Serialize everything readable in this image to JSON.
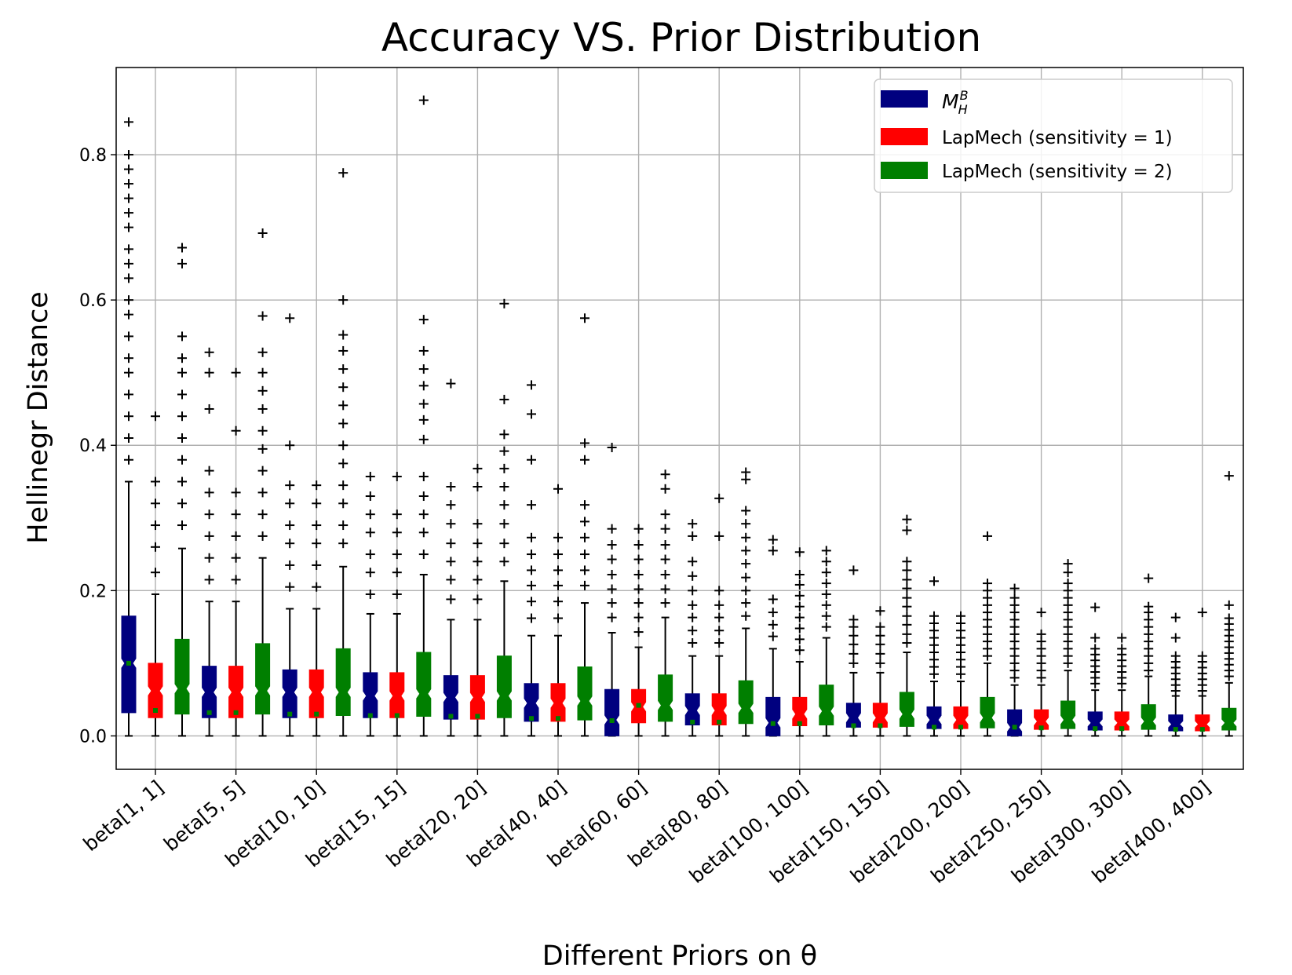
{
  "chart_data": {
    "type": "box",
    "title": "Accuracy VS. Prior Distribution",
    "xlabel": "Different Priors on θ",
    "ylabel": "Hellinegr Distance",
    "ylim": [
      -0.046,
      0.92
    ],
    "yticks": [
      0.0,
      0.2,
      0.4,
      0.6,
      0.8
    ],
    "grid": true,
    "legend_position": "top-right",
    "categories": [
      "beta[1, 1]",
      "beta[5, 5]",
      "beta[10, 10]",
      "beta[15, 15]",
      "beta[20, 20]",
      "beta[40, 40]",
      "beta[60, 60]",
      "beta[80, 80]",
      "beta[100, 100]",
      "beta[150, 150]",
      "beta[200, 200]",
      "beta[250, 250]",
      "beta[300, 300]",
      "beta[400, 400]"
    ],
    "series": [
      {
        "name": "M_H^B",
        "legend_main": "M",
        "legend_sub": "H",
        "legend_sup": "B",
        "color": "#00007f"
      },
      {
        "name": "LapMech (sensitivity = 1)",
        "color": "#ff0000"
      },
      {
        "name": "LapMech (sensitivity = 2)",
        "color": "#007f00"
      }
    ],
    "boxes": [
      {
        "category": "beta[1, 1]",
        "series": 0,
        "min": 0.0,
        "q1": 0.032,
        "median": 0.1,
        "q3": 0.165,
        "max": 0.35,
        "mean": 0.1,
        "outliers": [
          0.38,
          0.41,
          0.44,
          0.47,
          0.5,
          0.52,
          0.55,
          0.58,
          0.6,
          0.63,
          0.65,
          0.67,
          0.7,
          0.72,
          0.74,
          0.76,
          0.78,
          0.8,
          0.845
        ]
      },
      {
        "category": "beta[1, 1]",
        "series": 1,
        "min": 0.0,
        "q1": 0.025,
        "median": 0.062,
        "q3": 0.1,
        "max": 0.195,
        "mean": 0.035,
        "outliers": [
          0.225,
          0.26,
          0.29,
          0.32,
          0.35,
          0.44
        ]
      },
      {
        "category": "beta[1, 1]",
        "series": 2,
        "min": 0.0,
        "q1": 0.03,
        "median": 0.065,
        "q3": 0.133,
        "max": 0.258,
        "mean": 0.07,
        "outliers": [
          0.29,
          0.32,
          0.35,
          0.38,
          0.41,
          0.44,
          0.47,
          0.5,
          0.52,
          0.55,
          0.65,
          0.672
        ]
      },
      {
        "category": "beta[5, 5]",
        "series": 0,
        "min": 0.0,
        "q1": 0.025,
        "median": 0.06,
        "q3": 0.096,
        "max": 0.185,
        "mean": 0.032,
        "outliers": [
          0.215,
          0.245,
          0.275,
          0.305,
          0.335,
          0.365,
          0.45,
          0.5,
          0.528
        ]
      },
      {
        "category": "beta[5, 5]",
        "series": 1,
        "min": 0.0,
        "q1": 0.025,
        "median": 0.06,
        "q3": 0.096,
        "max": 0.185,
        "mean": 0.032,
        "outliers": [
          0.215,
          0.245,
          0.275,
          0.305,
          0.335,
          0.42,
          0.5
        ]
      },
      {
        "category": "beta[5, 5]",
        "series": 2,
        "min": 0.0,
        "q1": 0.03,
        "median": 0.062,
        "q3": 0.127,
        "max": 0.245,
        "mean": 0.065,
        "outliers": [
          0.275,
          0.305,
          0.335,
          0.365,
          0.395,
          0.42,
          0.45,
          0.475,
          0.5,
          0.528,
          0.578,
          0.692
        ]
      },
      {
        "category": "beta[10, 10]",
        "series": 0,
        "min": 0.0,
        "q1": 0.025,
        "median": 0.06,
        "q3": 0.091,
        "max": 0.175,
        "mean": 0.03,
        "outliers": [
          0.205,
          0.235,
          0.265,
          0.29,
          0.32,
          0.345,
          0.4,
          0.575
        ]
      },
      {
        "category": "beta[10, 10]",
        "series": 1,
        "min": 0.0,
        "q1": 0.025,
        "median": 0.06,
        "q3": 0.091,
        "max": 0.175,
        "mean": 0.03,
        "outliers": [
          0.205,
          0.235,
          0.265,
          0.29,
          0.32,
          0.345
        ]
      },
      {
        "category": "beta[10, 10]",
        "series": 2,
        "min": 0.0,
        "q1": 0.028,
        "median": 0.06,
        "q3": 0.12,
        "max": 0.233,
        "mean": 0.06,
        "outliers": [
          0.265,
          0.29,
          0.32,
          0.345,
          0.375,
          0.4,
          0.43,
          0.455,
          0.48,
          0.505,
          0.53,
          0.552,
          0.6,
          0.775
        ]
      },
      {
        "category": "beta[15, 15]",
        "series": 0,
        "min": 0.0,
        "q1": 0.025,
        "median": 0.055,
        "q3": 0.087,
        "max": 0.168,
        "mean": 0.028,
        "outliers": [
          0.195,
          0.225,
          0.25,
          0.28,
          0.305,
          0.33,
          0.357
        ]
      },
      {
        "category": "beta[15, 15]",
        "series": 1,
        "min": 0.0,
        "q1": 0.025,
        "median": 0.055,
        "q3": 0.087,
        "max": 0.168,
        "mean": 0.028,
        "outliers": [
          0.195,
          0.225,
          0.25,
          0.28,
          0.305,
          0.357
        ]
      },
      {
        "category": "beta[15, 15]",
        "series": 2,
        "min": 0.0,
        "q1": 0.027,
        "median": 0.058,
        "q3": 0.115,
        "max": 0.222,
        "mean": 0.058,
        "outliers": [
          0.25,
          0.28,
          0.305,
          0.33,
          0.357,
          0.408,
          0.435,
          0.457,
          0.482,
          0.505,
          0.53,
          0.573,
          0.875
        ]
      },
      {
        "category": "beta[20, 20]",
        "series": 0,
        "min": 0.0,
        "q1": 0.023,
        "median": 0.053,
        "q3": 0.083,
        "max": 0.16,
        "mean": 0.027,
        "outliers": [
          0.188,
          0.215,
          0.24,
          0.265,
          0.292,
          0.318,
          0.343,
          0.485
        ]
      },
      {
        "category": "beta[20, 20]",
        "series": 1,
        "min": 0.0,
        "q1": 0.023,
        "median": 0.053,
        "q3": 0.083,
        "max": 0.16,
        "mean": 0.027,
        "outliers": [
          0.188,
          0.215,
          0.24,
          0.265,
          0.292,
          0.343,
          0.368
        ]
      },
      {
        "category": "beta[20, 20]",
        "series": 2,
        "min": 0.0,
        "q1": 0.025,
        "median": 0.055,
        "q3": 0.11,
        "max": 0.213,
        "mean": 0.055,
        "outliers": [
          0.24,
          0.265,
          0.292,
          0.318,
          0.343,
          0.368,
          0.392,
          0.415,
          0.463,
          0.595
        ]
      },
      {
        "category": "beta[40, 40]",
        "series": 0,
        "min": 0.0,
        "q1": 0.02,
        "median": 0.045,
        "q3": 0.072,
        "max": 0.138,
        "mean": 0.024,
        "outliers": [
          0.162,
          0.185,
          0.207,
          0.228,
          0.25,
          0.273,
          0.318,
          0.38,
          0.443,
          0.483
        ]
      },
      {
        "category": "beta[40, 40]",
        "series": 1,
        "min": 0.0,
        "q1": 0.02,
        "median": 0.045,
        "q3": 0.072,
        "max": 0.138,
        "mean": 0.024,
        "outliers": [
          0.162,
          0.185,
          0.207,
          0.228,
          0.25,
          0.273,
          0.34
        ]
      },
      {
        "category": "beta[40, 40]",
        "series": 2,
        "min": 0.0,
        "q1": 0.022,
        "median": 0.048,
        "q3": 0.095,
        "max": 0.183,
        "mean": 0.048,
        "outliers": [
          0.207,
          0.228,
          0.25,
          0.273,
          0.295,
          0.318,
          0.38,
          0.403,
          0.575
        ]
      },
      {
        "category": "beta[60, 60]",
        "series": 0,
        "min": 0.0,
        "q1": 0.0,
        "median": 0.022,
        "q3": 0.064,
        "max": 0.142,
        "mean": 0.021,
        "outliers": [
          0.163,
          0.183,
          0.202,
          0.222,
          0.243,
          0.263,
          0.285,
          0.397
        ]
      },
      {
        "category": "beta[60, 60]",
        "series": 1,
        "min": 0.0,
        "q1": 0.018,
        "median": 0.04,
        "q3": 0.064,
        "max": 0.122,
        "mean": 0.042,
        "outliers": [
          0.143,
          0.163,
          0.183,
          0.202,
          0.222,
          0.243,
          0.263,
          0.285
        ]
      },
      {
        "category": "beta[60, 60]",
        "series": 2,
        "min": 0.0,
        "q1": 0.02,
        "median": 0.042,
        "q3": 0.084,
        "max": 0.163,
        "mean": 0.042,
        "outliers": [
          0.183,
          0.202,
          0.222,
          0.243,
          0.263,
          0.285,
          0.305,
          0.34,
          0.36
        ]
      },
      {
        "category": "beta[80, 80]",
        "series": 0,
        "min": 0.0,
        "q1": 0.015,
        "median": 0.035,
        "q3": 0.058,
        "max": 0.11,
        "mean": 0.019,
        "outliers": [
          0.128,
          0.145,
          0.163,
          0.18,
          0.2,
          0.22,
          0.24,
          0.275,
          0.292
        ]
      },
      {
        "category": "beta[80, 80]",
        "series": 1,
        "min": 0.0,
        "q1": 0.015,
        "median": 0.035,
        "q3": 0.058,
        "max": 0.11,
        "mean": 0.019,
        "outliers": [
          0.128,
          0.145,
          0.163,
          0.18,
          0.2,
          0.275,
          0.327
        ]
      },
      {
        "category": "beta[80, 80]",
        "series": 2,
        "min": 0.0,
        "q1": 0.017,
        "median": 0.038,
        "q3": 0.076,
        "max": 0.148,
        "mean": 0.038,
        "outliers": [
          0.165,
          0.183,
          0.2,
          0.218,
          0.237,
          0.255,
          0.273,
          0.292,
          0.31,
          0.353,
          0.363
        ]
      },
      {
        "category": "beta[100, 100]",
        "series": 0,
        "min": 0.0,
        "q1": 0.0,
        "median": 0.018,
        "q3": 0.053,
        "max": 0.12,
        "mean": 0.017,
        "outliers": [
          0.137,
          0.153,
          0.17,
          0.188,
          0.255,
          0.27
        ]
      },
      {
        "category": "beta[100, 100]",
        "series": 1,
        "min": 0.0,
        "q1": 0.014,
        "median": 0.03,
        "q3": 0.053,
        "max": 0.102,
        "mean": 0.017,
        "outliers": [
          0.118,
          0.133,
          0.148,
          0.163,
          0.178,
          0.193,
          0.208,
          0.222,
          0.253
        ]
      },
      {
        "category": "beta[100, 100]",
        "series": 2,
        "min": 0.0,
        "q1": 0.015,
        "median": 0.034,
        "q3": 0.07,
        "max": 0.135,
        "mean": 0.034,
        "outliers": [
          0.15,
          0.165,
          0.18,
          0.195,
          0.21,
          0.225,
          0.24,
          0.255
        ]
      },
      {
        "category": "beta[150, 150]",
        "series": 0,
        "min": 0.0,
        "q1": 0.012,
        "median": 0.025,
        "q3": 0.045,
        "max": 0.087,
        "mean": 0.014,
        "outliers": [
          0.1,
          0.113,
          0.126,
          0.138,
          0.15,
          0.16,
          0.228
        ]
      },
      {
        "category": "beta[150, 150]",
        "series": 1,
        "min": 0.0,
        "q1": 0.012,
        "median": 0.025,
        "q3": 0.045,
        "max": 0.087,
        "mean": 0.014,
        "outliers": [
          0.1,
          0.113,
          0.126,
          0.138,
          0.15,
          0.172
        ]
      },
      {
        "category": "beta[150, 150]",
        "series": 2,
        "min": 0.0,
        "q1": 0.013,
        "median": 0.03,
        "q3": 0.06,
        "max": 0.115,
        "mean": 0.03,
        "outliers": [
          0.128,
          0.14,
          0.153,
          0.165,
          0.178,
          0.19,
          0.203,
          0.215,
          0.228,
          0.24,
          0.283,
          0.298
        ]
      },
      {
        "category": "beta[200, 200]",
        "series": 0,
        "min": 0.0,
        "q1": 0.01,
        "median": 0.022,
        "q3": 0.04,
        "max": 0.075,
        "mean": 0.012,
        "outliers": [
          0.085,
          0.095,
          0.105,
          0.115,
          0.125,
          0.135,
          0.145,
          0.155,
          0.165,
          0.213
        ]
      },
      {
        "category": "beta[200, 200]",
        "series": 1,
        "min": 0.0,
        "q1": 0.01,
        "median": 0.022,
        "q3": 0.04,
        "max": 0.075,
        "mean": 0.012,
        "outliers": [
          0.085,
          0.095,
          0.105,
          0.115,
          0.125,
          0.135,
          0.145,
          0.155,
          0.165
        ]
      },
      {
        "category": "beta[200, 200]",
        "series": 2,
        "min": 0.0,
        "q1": 0.011,
        "median": 0.025,
        "q3": 0.053,
        "max": 0.1,
        "mean": 0.025,
        "outliers": [
          0.11,
          0.12,
          0.13,
          0.14,
          0.15,
          0.16,
          0.17,
          0.18,
          0.19,
          0.2,
          0.21,
          0.275
        ]
      },
      {
        "category": "beta[250, 250]",
        "series": 0,
        "min": 0.0,
        "q1": 0.0,
        "median": 0.012,
        "q3": 0.036,
        "max": 0.07,
        "mean": 0.012,
        "outliers": [
          0.08,
          0.09,
          0.1,
          0.11,
          0.12,
          0.13,
          0.14,
          0.15,
          0.16,
          0.17,
          0.18,
          0.19,
          0.203
        ]
      },
      {
        "category": "beta[250, 250]",
        "series": 1,
        "min": 0.0,
        "q1": 0.009,
        "median": 0.02,
        "q3": 0.036,
        "max": 0.07,
        "mean": 0.011,
        "outliers": [
          0.08,
          0.09,
          0.1,
          0.11,
          0.12,
          0.13,
          0.14,
          0.17
        ]
      },
      {
        "category": "beta[250, 250]",
        "series": 2,
        "min": 0.0,
        "q1": 0.01,
        "median": 0.022,
        "q3": 0.048,
        "max": 0.09,
        "mean": 0.022,
        "outliers": [
          0.1,
          0.11,
          0.12,
          0.13,
          0.14,
          0.15,
          0.16,
          0.17,
          0.18,
          0.19,
          0.2,
          0.21,
          0.225,
          0.237
        ]
      },
      {
        "category": "beta[300, 300]",
        "series": 0,
        "min": 0.0,
        "q1": 0.008,
        "median": 0.018,
        "q3": 0.033,
        "max": 0.063,
        "mean": 0.01,
        "outliers": [
          0.072,
          0.08,
          0.088,
          0.096,
          0.104,
          0.112,
          0.12,
          0.135,
          0.177
        ]
      },
      {
        "category": "beta[300, 300]",
        "series": 1,
        "min": 0.0,
        "q1": 0.008,
        "median": 0.018,
        "q3": 0.033,
        "max": 0.063,
        "mean": 0.01,
        "outliers": [
          0.072,
          0.08,
          0.088,
          0.096,
          0.104,
          0.112,
          0.12,
          0.135
        ]
      },
      {
        "category": "beta[300, 300]",
        "series": 2,
        "min": 0.0,
        "q1": 0.009,
        "median": 0.02,
        "q3": 0.043,
        "max": 0.082,
        "mean": 0.02,
        "outliers": [
          0.09,
          0.1,
          0.11,
          0.12,
          0.13,
          0.14,
          0.15,
          0.16,
          0.17,
          0.178,
          0.217
        ]
      },
      {
        "category": "beta[400, 400]",
        "series": 0,
        "min": 0.0,
        "q1": 0.007,
        "median": 0.016,
        "q3": 0.029,
        "max": 0.055,
        "mean": 0.009,
        "outliers": [
          0.062,
          0.07,
          0.078,
          0.086,
          0.094,
          0.102,
          0.11,
          0.135,
          0.163
        ]
      },
      {
        "category": "beta[400, 400]",
        "series": 1,
        "min": 0.0,
        "q1": 0.007,
        "median": 0.016,
        "q3": 0.029,
        "max": 0.055,
        "mean": 0.009,
        "outliers": [
          0.062,
          0.07,
          0.078,
          0.086,
          0.094,
          0.102,
          0.11,
          0.17
        ]
      },
      {
        "category": "beta[400, 400]",
        "series": 2,
        "min": 0.0,
        "q1": 0.008,
        "median": 0.018,
        "q3": 0.038,
        "max": 0.073,
        "mean": 0.018,
        "outliers": [
          0.082,
          0.09,
          0.098,
          0.106,
          0.114,
          0.122,
          0.13,
          0.138,
          0.146,
          0.154,
          0.162,
          0.18,
          0.358
        ]
      }
    ]
  }
}
